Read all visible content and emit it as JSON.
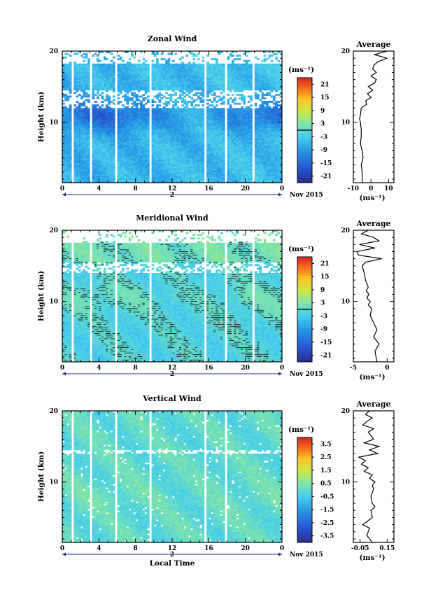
{
  "chart_data": [
    {
      "type": "heatmap",
      "title": "Zonal Wind",
      "ylabel": "Height (km)",
      "xlabel": "",
      "x_ticks": [
        "0",
        "4",
        "8",
        "12",
        "16",
        "20",
        "0"
      ],
      "y_ticks": [
        "20",
        "10"
      ],
      "xlim": [
        0,
        24
      ],
      "ylim": [
        1.5,
        20
      ],
      "day_label": "2",
      "date_label": "Nov 2015",
      "colorbar": {
        "unit": "(ms⁻¹)",
        "ticks": [
          "21",
          "15",
          "9",
          "3",
          "-3",
          "-9",
          "-15",
          "-21"
        ],
        "range": [
          -24,
          24
        ],
        "zero_line": true
      },
      "field": {
        "base": -5.5,
        "top_valid_km": 18.3,
        "gap_km": [
          12.0,
          14.5
        ],
        "upper_base": 0.5,
        "jet_km": 11.0,
        "jet_amp": -9,
        "gradient": 0.25,
        "noise": 4.0,
        "contours": true
      },
      "blank_hours": [
        1.0,
        1.2,
        3.0,
        3.2,
        5.6,
        5.9,
        9.4,
        9.7,
        15.4,
        15.7,
        17.6,
        17.9,
        20.6,
        20.8
      ],
      "average": {
        "title": "Average",
        "xlabel": "(ms⁻¹)",
        "x_ticks": [
          "-10",
          "0",
          "10"
        ],
        "xlim": [
          -10,
          13
        ],
        "y_ticks": [
          "20",
          "10"
        ],
        "heights_km": [
          1.5,
          3,
          4,
          5,
          6,
          7,
          8,
          9,
          10,
          10.5,
          11,
          12,
          12.5,
          13,
          13.5,
          14,
          14.5,
          15,
          15.5,
          16,
          16.5,
          17,
          17.5,
          18,
          18.5,
          19,
          19.5,
          20
        ],
        "values": [
          -5,
          -5,
          -5.5,
          -4.5,
          -5,
          -6,
          -5.5,
          -5.5,
          -6,
          -6.5,
          -6,
          -5.5,
          -2.5,
          -3,
          0,
          -2,
          1,
          -1.5,
          2,
          3,
          0,
          3,
          1,
          1.5,
          4,
          9,
          2,
          9
        ]
      }
    },
    {
      "type": "heatmap",
      "title": "Meridional Wind",
      "ylabel": "Height (km)",
      "xlabel": "",
      "x_ticks": [
        "0",
        "4",
        "8",
        "12",
        "16",
        "20",
        "0"
      ],
      "y_ticks": [
        "20",
        "10"
      ],
      "xlim": [
        0,
        24
      ],
      "ylim": [
        1.5,
        20
      ],
      "day_label": "2",
      "date_label": "Nov 2015",
      "colorbar": {
        "unit": "(ms⁻¹)",
        "ticks": [
          "21",
          "15",
          "9",
          "3",
          "-3",
          "-9",
          "-15",
          "-21"
        ],
        "range": [
          -24,
          24
        ],
        "zero_line": true
      },
      "field": {
        "base": -1.5,
        "top_valid_km": 18.2,
        "gap_km": [
          14.0,
          15.6
        ],
        "upper_base": 3,
        "jet_km": 10.5,
        "jet_amp": 2.5,
        "gradient": 0.05,
        "noise": 3.2,
        "contours": true
      },
      "blank_hours": [
        1.0,
        1.2,
        3.0,
        3.2,
        5.6,
        5.9,
        9.4,
        9.7,
        15.4,
        15.7,
        17.6,
        17.9,
        20.6,
        20.8
      ],
      "average": {
        "title": "Average",
        "xlabel": "(ms⁻¹)",
        "x_ticks": [
          "-5",
          "0"
        ],
        "xlim": [
          -5,
          1
        ],
        "y_ticks": [
          "20",
          "10"
        ],
        "heights_km": [
          1.5,
          3,
          4,
          5,
          6,
          7,
          8,
          9,
          9.5,
          10,
          10.5,
          11,
          11.5,
          12,
          13,
          14,
          15,
          15.5,
          16,
          16.5,
          17,
          17.5,
          18,
          18.5,
          19,
          19.5,
          20
        ],
        "values": [
          -1.5,
          -1.8,
          -1.2,
          -2,
          -1.5,
          -2,
          -2.5,
          -2.3,
          -2.8,
          -2.5,
          -3,
          -2.7,
          -3.1,
          -2.8,
          -3.2,
          -3.4,
          -3.7,
          -3.2,
          -0.8,
          -4.2,
          -4.5,
          -1.8,
          -4.1,
          -1.2,
          -2,
          -3.8,
          -2.8
        ]
      }
    },
    {
      "type": "heatmap",
      "title": "Vertical Wind",
      "ylabel": "Height (km)",
      "xlabel": "Local Time",
      "x_ticks": [
        "0",
        "4",
        "8",
        "12",
        "16",
        "20",
        "0"
      ],
      "y_ticks": [
        "20",
        "10"
      ],
      "xlim": [
        0,
        24
      ],
      "ylim": [
        1.5,
        20
      ],
      "day_label": "2",
      "date_label": "Nov 2015",
      "colorbar": {
        "unit": "(ms⁻¹)",
        "ticks": [
          "3.5",
          "2.5",
          "1.5",
          "0.5",
          "-0.5",
          "-1.5",
          "-2.5",
          "-3.5"
        ],
        "range": [
          -4,
          4
        ],
        "zero_line": false
      },
      "field": {
        "base": 0.0,
        "top_valid_km": 20,
        "gap_km": [
          14.0,
          14.6
        ],
        "upper_base": 0.0,
        "jet_km": 8,
        "jet_amp": 0.2,
        "gradient": 0.0,
        "noise": 0.6,
        "contours": false
      },
      "blank_hours": [
        1.0,
        1.2,
        3.0,
        3.2,
        5.6,
        5.9,
        9.4,
        9.7,
        15.4,
        15.7,
        17.6,
        17.9
      ],
      "average": {
        "title": "Average",
        "xlabel": "(ms⁻¹)",
        "x_ticks": [
          "-0.05",
          "0.15"
        ],
        "xlim": [
          -0.1,
          0.2
        ],
        "y_ticks": [
          "20",
          "10"
        ],
        "heights_km": [
          1.5,
          2.5,
          3.5,
          4,
          5,
          6,
          6.5,
          7,
          8,
          9,
          9.5,
          10,
          10.5,
          11,
          11.5,
          12,
          12.5,
          13,
          13.5,
          14,
          14.5,
          15,
          15.5,
          16,
          17,
          17.5,
          18,
          18.5,
          19,
          19.5,
          20
        ],
        "values": [
          0.04,
          0.0,
          0.02,
          -0.03,
          0.04,
          0.03,
          0.06,
          0.04,
          0.03,
          0.05,
          0.04,
          0.06,
          0.02,
          0.04,
          -0.02,
          0.01,
          -0.04,
          -0.01,
          -0.06,
          0.08,
          0.02,
          0.09,
          -0.02,
          0.05,
          0.01,
          0.05,
          -0.03,
          0.0,
          0.04,
          -0.01,
          0.02
        ]
      }
    }
  ]
}
